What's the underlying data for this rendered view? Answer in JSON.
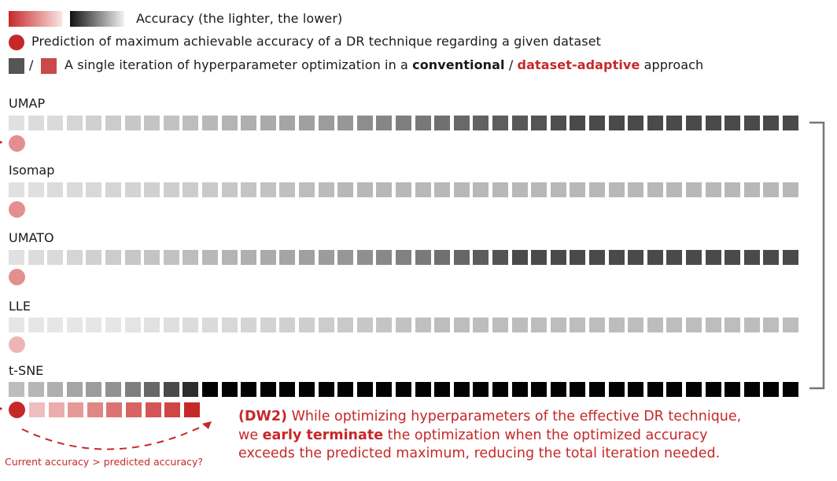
{
  "legend": {
    "accuracy_label": "Accuracy (the lighter, the lower)",
    "prediction_label": "Prediction of maximum achievable accuracy of a DR technique regarding a given dataset",
    "iteration_prefix": "A single iteration of hyperparameter optimization in a ",
    "iteration_conventional": "conventional",
    "iteration_sep": " / ",
    "iteration_adaptive": "dataset-adaptive",
    "iteration_suffix": " approach",
    "slash": "/"
  },
  "colors": {
    "conventional": "#555555",
    "adaptive": "#c94a4a",
    "prediction": "#c62828",
    "bracket": "#777777"
  },
  "techniques": [
    {
      "name": "UMAP",
      "accuracy": [
        0.07,
        0.09,
        0.1,
        0.12,
        0.14,
        0.16,
        0.18,
        0.19,
        0.2,
        0.22,
        0.24,
        0.26,
        0.28,
        0.3,
        0.32,
        0.34,
        0.36,
        0.38,
        0.42,
        0.45,
        0.48,
        0.51,
        0.54,
        0.57,
        0.6,
        0.62,
        0.64,
        0.66,
        0.68,
        0.7,
        0.7,
        0.7,
        0.7,
        0.7,
        0.7,
        0.7,
        0.7,
        0.7,
        0.7,
        0.7,
        0.7
      ],
      "prediction": 0.45
    },
    {
      "name": "Isomap",
      "accuracy": [
        0.07,
        0.08,
        0.09,
        0.1,
        0.11,
        0.12,
        0.13,
        0.14,
        0.15,
        0.16,
        0.17,
        0.18,
        0.19,
        0.2,
        0.21,
        0.22,
        0.23,
        0.24,
        0.24,
        0.24,
        0.24,
        0.24,
        0.24,
        0.24,
        0.24,
        0.24,
        0.24,
        0.24,
        0.24,
        0.24,
        0.24,
        0.24,
        0.24,
        0.24,
        0.24,
        0.24,
        0.24,
        0.24,
        0.24,
        0.24,
        0.24
      ],
      "prediction": 0.45
    },
    {
      "name": "UMATO",
      "accuracy": [
        0.07,
        0.09,
        0.1,
        0.12,
        0.14,
        0.16,
        0.18,
        0.19,
        0.2,
        0.22,
        0.24,
        0.26,
        0.28,
        0.3,
        0.32,
        0.34,
        0.36,
        0.38,
        0.41,
        0.44,
        0.47,
        0.5,
        0.54,
        0.58,
        0.62,
        0.66,
        0.7,
        0.7,
        0.7,
        0.7,
        0.7,
        0.7,
        0.7,
        0.7,
        0.7,
        0.7,
        0.7,
        0.7,
        0.7,
        0.7,
        0.7
      ],
      "prediction": 0.45
    },
    {
      "name": "LLE",
      "accuracy": [
        0.05,
        0.05,
        0.05,
        0.05,
        0.05,
        0.05,
        0.06,
        0.07,
        0.08,
        0.09,
        0.1,
        0.11,
        0.12,
        0.13,
        0.14,
        0.15,
        0.16,
        0.17,
        0.18,
        0.19,
        0.2,
        0.21,
        0.22,
        0.22,
        0.22,
        0.22,
        0.22,
        0.22,
        0.22,
        0.22,
        0.22,
        0.22,
        0.22,
        0.22,
        0.22,
        0.22,
        0.22,
        0.22,
        0.22,
        0.22,
        0.22
      ],
      "prediction": 0.25
    },
    {
      "name": "t-SNE",
      "accuracy": [
        0.22,
        0.25,
        0.28,
        0.32,
        0.36,
        0.4,
        0.48,
        0.58,
        0.7,
        0.82,
        1,
        1,
        1,
        1,
        1,
        1,
        1,
        1,
        1,
        1,
        1,
        1,
        1,
        1,
        1,
        1,
        1,
        1,
        1,
        1,
        1,
        1,
        1,
        1,
        1,
        1,
        1,
        1,
        1,
        1,
        1
      ],
      "prediction": 1.0
    }
  ],
  "adaptive_iterations": [
    0.2,
    0.3,
    0.4,
    0.5,
    0.6,
    0.68,
    0.76,
    0.84,
    1.0
  ],
  "note": {
    "tag": "(DW2)",
    "line1_rest": " While optimizing hyperparameters of the effective DR technique,",
    "line2_pre": "we ",
    "line2_bold": "early terminate",
    "line2_post": " the optimization when the optimized accuracy",
    "line3": "exceeds the predicted maximum, reducing the total iteration needed."
  },
  "caption": "Current accuracy > predicted accuracy?"
}
